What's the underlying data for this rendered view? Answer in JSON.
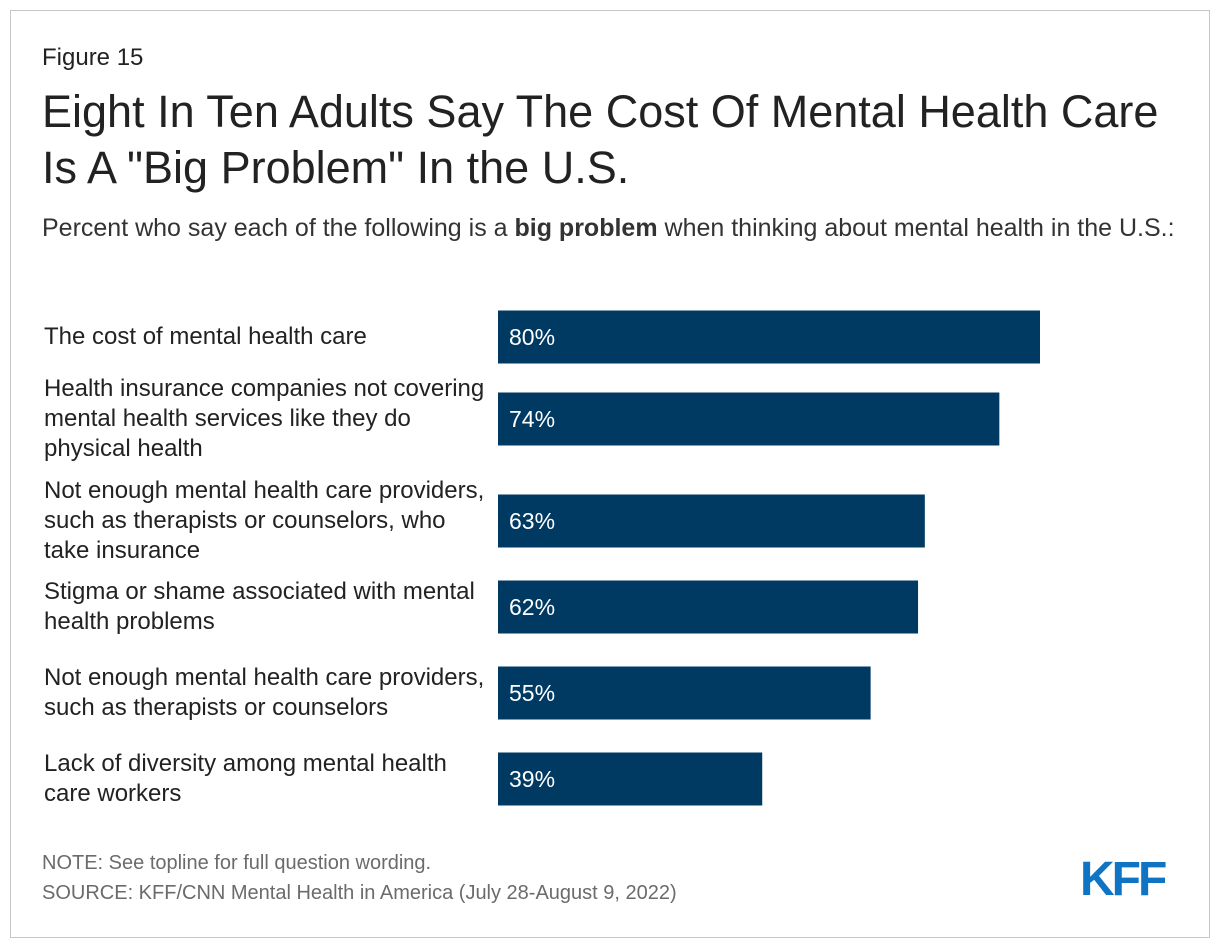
{
  "figure_label": "Figure 15",
  "chart_data": {
    "type": "bar",
    "orientation": "horizontal",
    "title": "Eight In Ten Adults Say The Cost Of Mental Health Care Is A \"Big Problem\" In the U.S.",
    "subtitle_prefix": "Percent who say each of the following is a ",
    "subtitle_bold": "big problem",
    "subtitle_suffix": " when thinking about mental health in the U.S.:",
    "categories": [
      "The cost of mental health care",
      "Health insurance companies not covering mental health services like they do physical health",
      "Not enough mental health care providers, such as therapists or counselors, who take insurance",
      "Stigma or shame associated with mental health problems",
      "Not enough mental health care providers, such as therapists or counselors",
      "Lack of diversity among mental health care workers"
    ],
    "values": [
      80,
      74,
      63,
      62,
      55,
      39
    ],
    "value_labels": [
      "80%",
      "74%",
      "63%",
      "62%",
      "55%",
      "39%"
    ],
    "xlim": [
      0,
      100
    ],
    "bar_color": "#003A63",
    "label_color": "#ffffff",
    "grid": false,
    "legend": "none"
  },
  "note": "NOTE: See topline for full question wording.",
  "source": "SOURCE: KFF/CNN Mental Health in America (July 28-August 9, 2022)",
  "logo_text": "KFF",
  "logo_color": "#0F74C4"
}
